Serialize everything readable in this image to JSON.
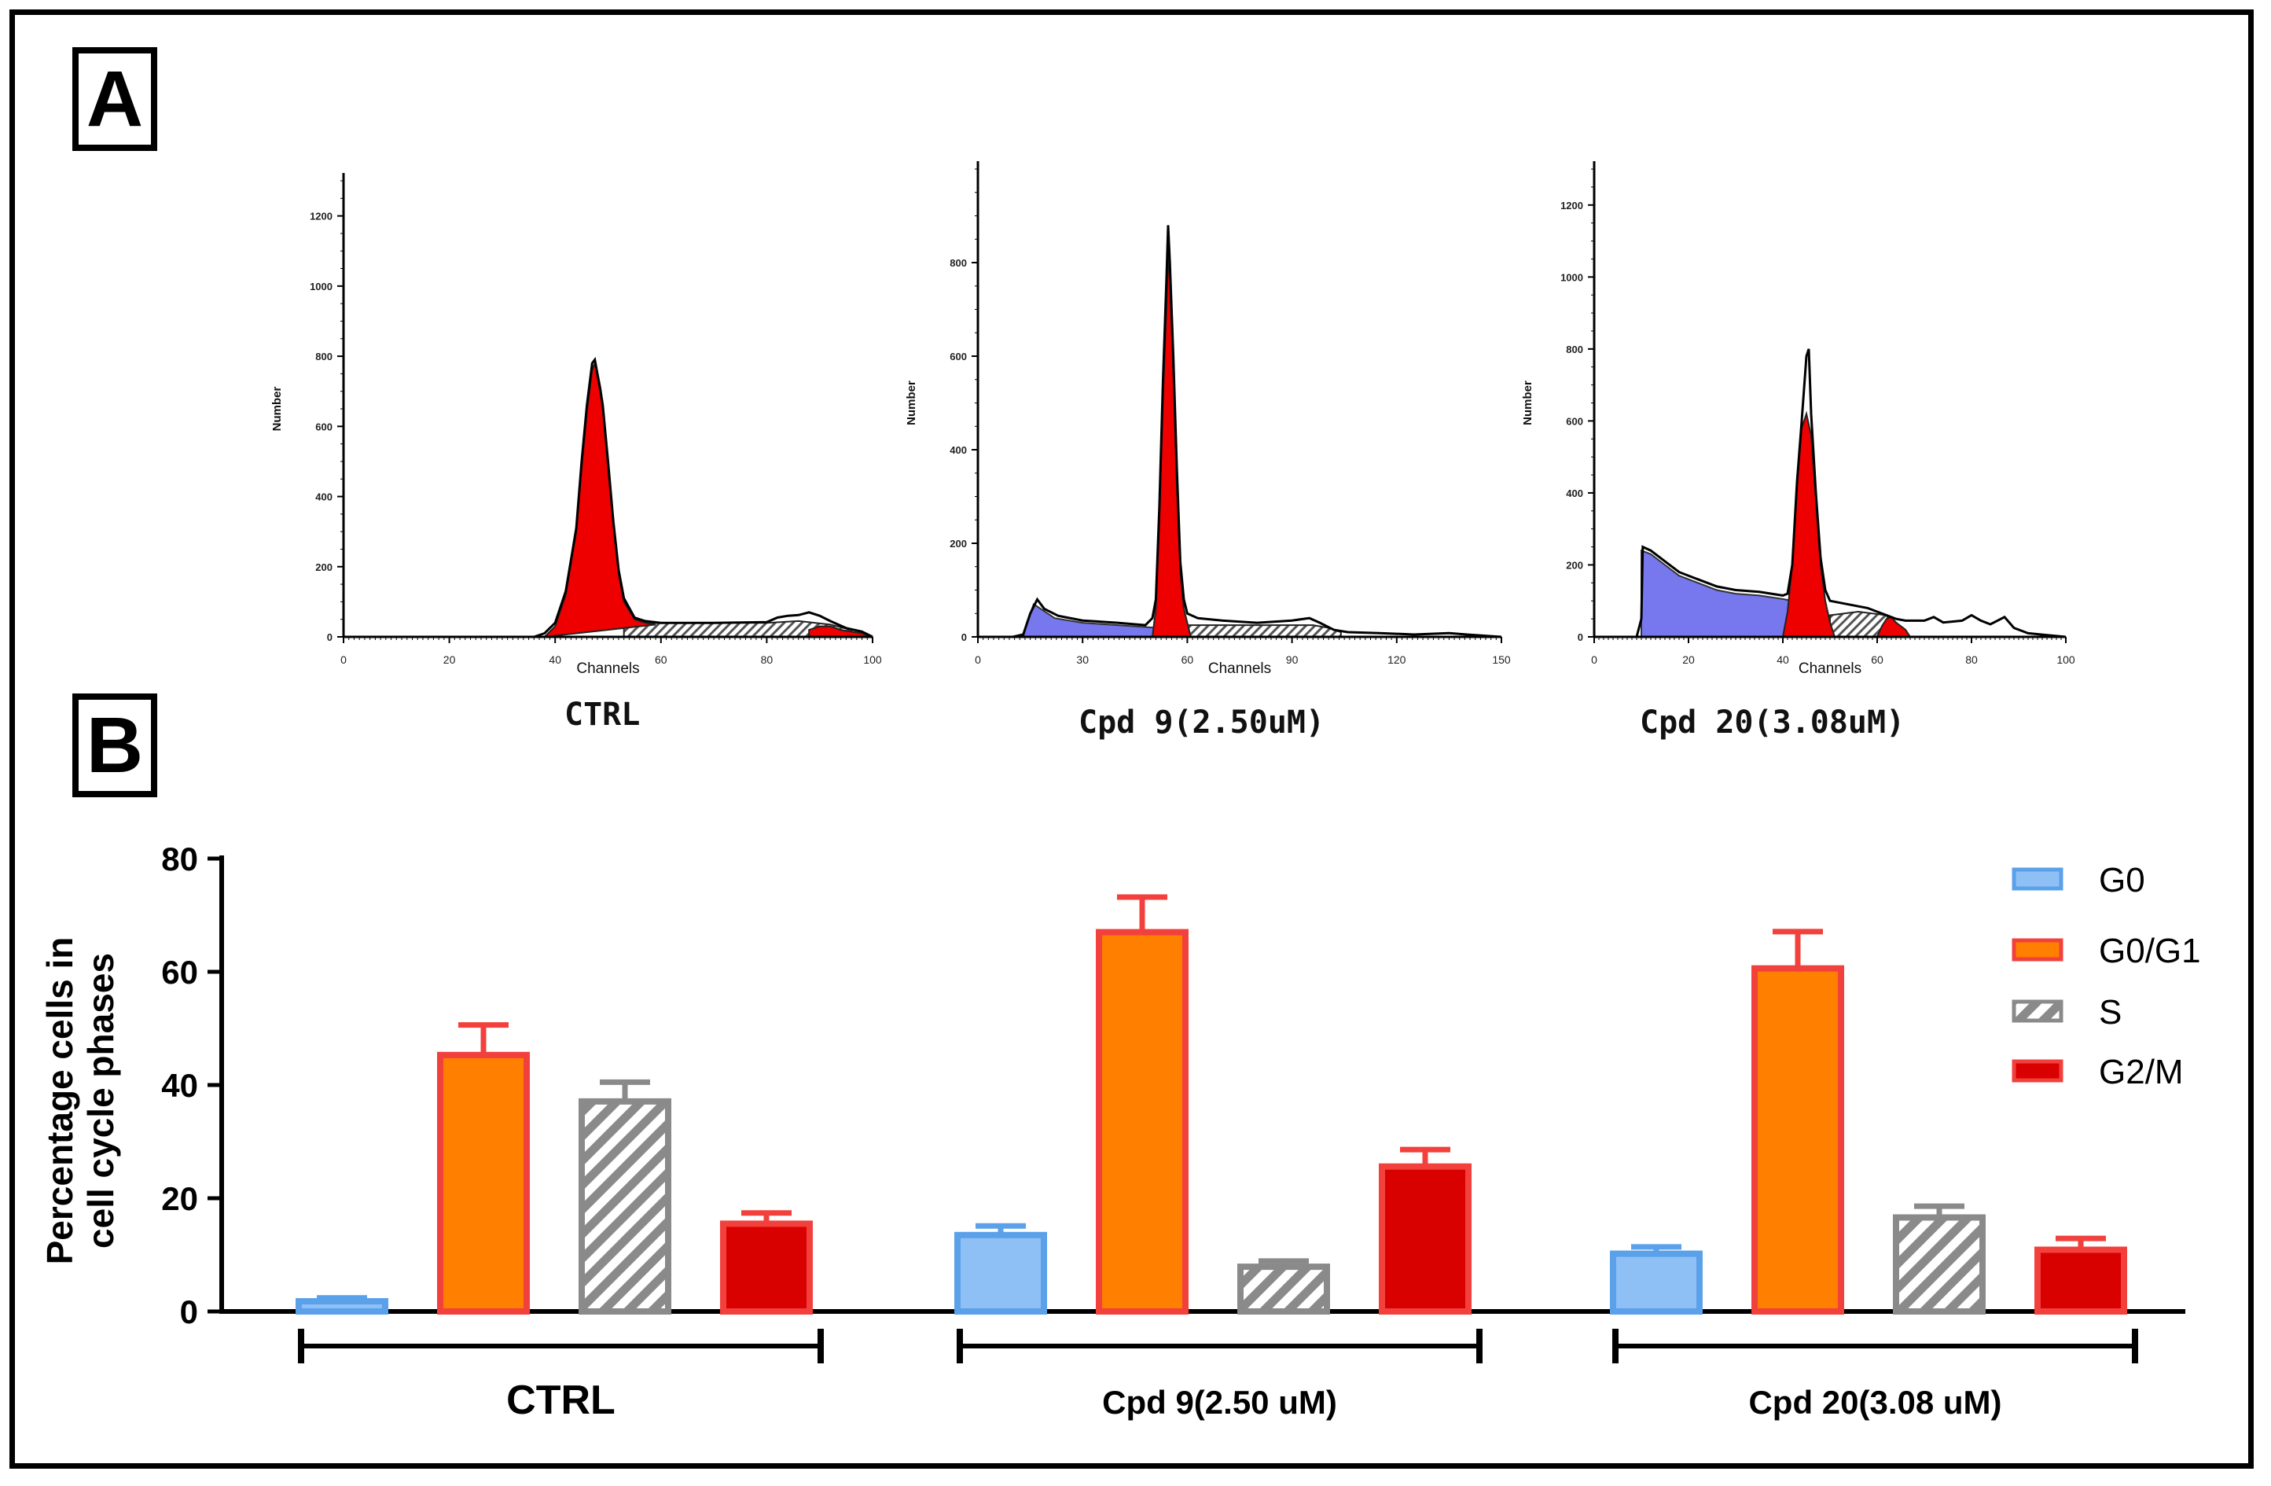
{
  "panels": {
    "a_label": "A",
    "b_label": "B"
  },
  "histograms": [
    {
      "caption": "CTRL",
      "xlabel": "Channels",
      "ylabel": "Number",
      "xmax": 100,
      "xticks": [
        "0",
        "20",
        "40",
        "60",
        "80",
        "100"
      ],
      "ymax": 1300,
      "yticks": [
        "0",
        "200",
        "400",
        "600",
        "800",
        "1000",
        "1200"
      ],
      "g0": [],
      "g1": [
        [
          38,
          0
        ],
        [
          40,
          30
        ],
        [
          42,
          120
        ],
        [
          44,
          300
        ],
        [
          45,
          480
        ],
        [
          46,
          640
        ],
        [
          47,
          760
        ],
        [
          47.5,
          780
        ],
        [
          48,
          740
        ],
        [
          48.5,
          700
        ],
        [
          49,
          650
        ],
        [
          50,
          480
        ],
        [
          51,
          320
        ],
        [
          52,
          180
        ],
        [
          53,
          100
        ],
        [
          55,
          50
        ],
        [
          57,
          40
        ],
        [
          59,
          35
        ]
      ],
      "s_band": [
        [
          53,
          0
        ],
        [
          53,
          40
        ],
        [
          80,
          40
        ],
        [
          86,
          45
        ],
        [
          92,
          35
        ],
        [
          96,
          20
        ],
        [
          96,
          0
        ]
      ],
      "g2": [
        [
          88,
          0
        ],
        [
          88,
          20
        ],
        [
          90,
          30
        ],
        [
          92,
          30
        ],
        [
          94,
          20
        ],
        [
          98,
          10
        ],
        [
          100,
          0
        ]
      ],
      "outline": [
        [
          0,
          0
        ],
        [
          36,
          0
        ],
        [
          38,
          10
        ],
        [
          40,
          40
        ],
        [
          42,
          130
        ],
        [
          44,
          310
        ],
        [
          45,
          500
        ],
        [
          46,
          660
        ],
        [
          47,
          780
        ],
        [
          47.5,
          790
        ],
        [
          48,
          750
        ],
        [
          48.5,
          710
        ],
        [
          49,
          660
        ],
        [
          50,
          500
        ],
        [
          51,
          330
        ],
        [
          52,
          190
        ],
        [
          53,
          110
        ],
        [
          55,
          55
        ],
        [
          57,
          45
        ],
        [
          60,
          40
        ],
        [
          70,
          40
        ],
        [
          80,
          42
        ],
        [
          82,
          55
        ],
        [
          84,
          60
        ],
        [
          86,
          62
        ],
        [
          88,
          70
        ],
        [
          90,
          60
        ],
        [
          92,
          45
        ],
        [
          95,
          25
        ],
        [
          98,
          15
        ],
        [
          100,
          0
        ]
      ]
    },
    {
      "caption": "Cpd 9(2.50uM)",
      "xlabel": "Channels",
      "ylabel": "Number",
      "xmax": 150,
      "xticks": [
        "0",
        "30",
        "60",
        "90",
        "120",
        "150"
      ],
      "ymax": 1000,
      "yticks": [
        "0",
        "200",
        "400",
        "600",
        "800"
      ],
      "g0": [
        [
          13,
          0
        ],
        [
          14,
          30
        ],
        [
          16,
          70
        ],
        [
          18,
          60
        ],
        [
          22,
          40
        ],
        [
          30,
          30
        ],
        [
          40,
          25
        ],
        [
          50,
          20
        ],
        [
          54,
          15
        ],
        [
          56,
          0
        ]
      ],
      "g1": [
        [
          50,
          0
        ],
        [
          51,
          60
        ],
        [
          52,
          250
        ],
        [
          53,
          500
        ],
        [
          54,
          700
        ],
        [
          54.5,
          820
        ],
        [
          55,
          760
        ],
        [
          56,
          560
        ],
        [
          57,
          320
        ],
        [
          58,
          140
        ],
        [
          59,
          60
        ],
        [
          60,
          30
        ],
        [
          61,
          0
        ]
      ],
      "s_band": [
        [
          58,
          0
        ],
        [
          58,
          25
        ],
        [
          96,
          25
        ],
        [
          100,
          20
        ],
        [
          104,
          10
        ],
        [
          104,
          0
        ]
      ],
      "g2": [],
      "outline": [
        [
          0,
          0
        ],
        [
          10,
          0
        ],
        [
          13,
          5
        ],
        [
          15,
          50
        ],
        [
          17,
          80
        ],
        [
          19,
          60
        ],
        [
          23,
          45
        ],
        [
          30,
          35
        ],
        [
          40,
          30
        ],
        [
          48,
          25
        ],
        [
          50,
          40
        ],
        [
          51,
          80
        ],
        [
          52,
          280
        ],
        [
          53,
          540
        ],
        [
          54,
          760
        ],
        [
          54.5,
          880
        ],
        [
          55,
          800
        ],
        [
          56,
          600
        ],
        [
          57,
          360
        ],
        [
          58,
          160
        ],
        [
          59,
          80
        ],
        [
          60,
          50
        ],
        [
          63,
          40
        ],
        [
          70,
          35
        ],
        [
          80,
          30
        ],
        [
          90,
          35
        ],
        [
          95,
          40
        ],
        [
          98,
          30
        ],
        [
          102,
          15
        ],
        [
          106,
          10
        ],
        [
          115,
          8
        ],
        [
          125,
          5
        ],
        [
          135,
          8
        ],
        [
          140,
          5
        ],
        [
          150,
          0
        ]
      ]
    },
    {
      "caption": "Cpd 20(3.08uM)",
      "xlabel": "Channels",
      "ylabel": "Number",
      "xmax": 100,
      "xticks": [
        "0",
        "20",
        "40",
        "60",
        "80",
        "100"
      ],
      "ymax": 1300,
      "yticks": [
        "0",
        "200",
        "400",
        "600",
        "800",
        "1000",
        "1200"
      ],
      "g0": [
        [
          10,
          0
        ],
        [
          10,
          240
        ],
        [
          12,
          230
        ],
        [
          15,
          200
        ],
        [
          18,
          170
        ],
        [
          22,
          150
        ],
        [
          26,
          130
        ],
        [
          30,
          120
        ],
        [
          35,
          115
        ],
        [
          40,
          105
        ],
        [
          44,
          95
        ],
        [
          47,
          80
        ],
        [
          48,
          60
        ],
        [
          49,
          0
        ]
      ],
      "g1": [
        [
          40,
          0
        ],
        [
          41,
          70
        ],
        [
          42,
          200
        ],
        [
          43,
          420
        ],
        [
          44,
          580
        ],
        [
          45,
          620
        ],
        [
          46,
          560
        ],
        [
          47,
          380
        ],
        [
          48,
          200
        ],
        [
          49,
          100
        ],
        [
          50,
          40
        ],
        [
          51,
          0
        ]
      ],
      "s_band": [
        [
          50,
          0
        ],
        [
          50,
          60
        ],
        [
          56,
          70
        ],
        [
          62,
          60
        ],
        [
          64,
          0
        ]
      ],
      "g2": [
        [
          60,
          0
        ],
        [
          61,
          30
        ],
        [
          62,
          50
        ],
        [
          63,
          55
        ],
        [
          64,
          40
        ],
        [
          66,
          20
        ],
        [
          67,
          0
        ]
      ],
      "outline": [
        [
          0,
          0
        ],
        [
          9,
          0
        ],
        [
          10,
          50
        ],
        [
          10.3,
          250
        ],
        [
          12,
          240
        ],
        [
          15,
          210
        ],
        [
          18,
          180
        ],
        [
          22,
          160
        ],
        [
          26,
          140
        ],
        [
          30,
          130
        ],
        [
          35,
          125
        ],
        [
          40,
          115
        ],
        [
          41,
          120
        ],
        [
          42,
          200
        ],
        [
          43,
          430
        ],
        [
          44,
          600
        ],
        [
          45,
          780
        ],
        [
          45.5,
          800
        ],
        [
          46,
          620
        ],
        [
          47,
          400
        ],
        [
          48,
          220
        ],
        [
          49,
          130
        ],
        [
          50,
          100
        ],
        [
          54,
          90
        ],
        [
          58,
          80
        ],
        [
          60,
          70
        ],
        [
          62,
          60
        ],
        [
          64,
          50
        ],
        [
          66,
          45
        ],
        [
          70,
          45
        ],
        [
          72,
          55
        ],
        [
          74,
          40
        ],
        [
          78,
          45
        ],
        [
          80,
          60
        ],
        [
          82,
          45
        ],
        [
          84,
          35
        ],
        [
          87,
          55
        ],
        [
          89,
          25
        ],
        [
          92,
          10
        ],
        [
          96,
          5
        ],
        [
          100,
          0
        ]
      ]
    }
  ],
  "chart_data": {
    "type": "bar",
    "categories": [
      "CTRL",
      "Cpd 9(2.50 uM)",
      "Cpd 20(3.08 uM)"
    ],
    "series": [
      {
        "name": "G0",
        "values": [
          1.8,
          13.5,
          10.2
        ],
        "errors": [
          0.6,
          1.6,
          1.2
        ]
      },
      {
        "name": "G0/G1",
        "values": [
          45.3,
          67.0,
          60.6
        ],
        "errors": [
          5.3,
          6.2,
          6.5
        ]
      },
      {
        "name": "S",
        "values": [
          37.1,
          7.9,
          16.6
        ],
        "errors": [
          3.4,
          1.0,
          2.0
        ]
      },
      {
        "name": "G2/M",
        "values": [
          15.5,
          25.6,
          10.9
        ],
        "errors": [
          1.9,
          3.0,
          2.0
        ]
      }
    ],
    "ylabel": "Percentage cells in cell cycle phases",
    "ylabel_lines": [
      "Percentage cells in",
      "cell cycle phases"
    ],
    "ylim": [
      0,
      80
    ],
    "yticks": [
      "0",
      "20",
      "40",
      "60",
      "80"
    ],
    "legend_position": "top-right",
    "colors": {
      "G0_fill": "#8ec0f5",
      "G0_edge": "#5aa1ea",
      "G0G1_fill": "#ff8000",
      "G0G1_edge": "#f2403c",
      "S_fill": "#ffffff",
      "S_edge": "#8a8a8a",
      "G2M_fill": "#d90000",
      "G2M_edge": "#f2403c",
      "error_red": "#f2403c",
      "error_blue": "#5aa1ea",
      "error_grey": "#8a8a8a",
      "hist_red": "#ee0000",
      "hist_blue": "#7777ee"
    }
  }
}
